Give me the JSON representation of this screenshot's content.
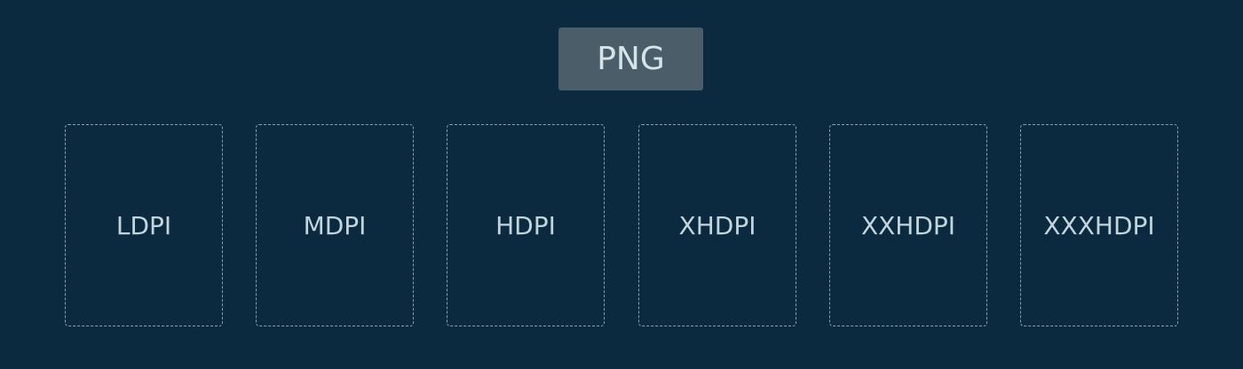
{
  "format": {
    "label": "PNG"
  },
  "densities": [
    {
      "label": "LDPI"
    },
    {
      "label": "MDPI"
    },
    {
      "label": "HDPI"
    },
    {
      "label": "XHDPI"
    },
    {
      "label": "XXHDPI"
    },
    {
      "label": "XXXHDPI"
    }
  ],
  "colors": {
    "background": "#0b2a3f",
    "badge": "#4a5d68",
    "text": "#c3d4dd",
    "dashed_border": "#8aa0ae"
  }
}
